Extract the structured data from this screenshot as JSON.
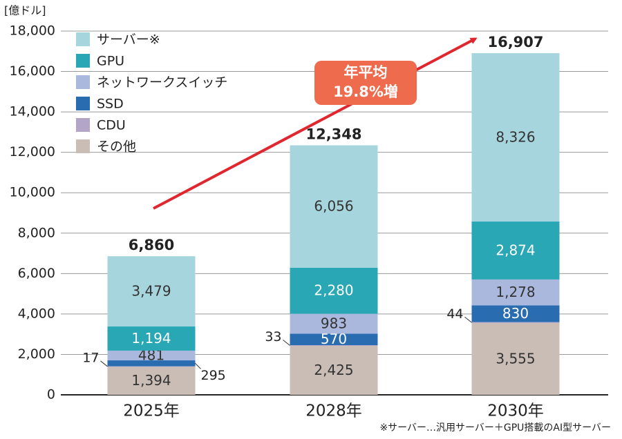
{
  "chart_data": {
    "type": "stacked_bar",
    "unit_label": "[億ドル]",
    "categories": [
      "2025年",
      "2028年",
      "2030年"
    ],
    "series": [
      {
        "name": "その他",
        "color": "#c9bdb5",
        "label_color": "#333333",
        "values": [
          1394,
          2425,
          3555
        ],
        "value_labels": [
          "1,394",
          "2,425",
          "3,555"
        ]
      },
      {
        "name": "CDU",
        "color": "#b3a5c8",
        "label_color": "#333333",
        "values": [
          17,
          33,
          44
        ],
        "value_labels": [
          "17",
          "33",
          "44"
        ]
      },
      {
        "name": "SSD",
        "color": "#2a6cb0",
        "label_color": "#ffffff",
        "values": [
          295,
          570,
          830
        ],
        "value_labels": [
          "295",
          "570",
          "830"
        ]
      },
      {
        "name": "ネットワークスイッチ",
        "color": "#a9b8dc",
        "label_color": "#333333",
        "values": [
          481,
          983,
          1278
        ],
        "value_labels": [
          "481",
          "983",
          "1,278"
        ]
      },
      {
        "name": "GPU",
        "color": "#2aa7b5",
        "label_color": "#ffffff",
        "values": [
          1194,
          2280,
          2874
        ],
        "value_labels": [
          "1,194",
          "2,280",
          "2,874"
        ]
      },
      {
        "name": "サーバー※",
        "color": "#a7d5de",
        "label_color": "#333333",
        "values": [
          3479,
          6056,
          8326
        ],
        "value_labels": [
          "3,479",
          "6,056",
          "8,326"
        ]
      }
    ],
    "totals": [
      6860,
      12348,
      16907
    ],
    "total_labels": [
      "6,860",
      "12,348",
      "16,907"
    ],
    "annotation": [
      "年平均",
      "19.8%増"
    ],
    "footnote": "※サーバー…汎用サーバー＋GPU搭載のAI型サーバー",
    "ylim": [
      0,
      18000
    ],
    "yticks": [
      0,
      {
        "value": 2000,
        "label": "2,000"
      },
      {
        "value": 4000,
        "label": "4,000"
      },
      {
        "value": 6000,
        "label": "6,000"
      },
      {
        "value": 8000,
        "label": "8,000"
      },
      {
        "value": 10000,
        "label": "10,000"
      },
      {
        "value": 12000,
        "label": "12,000"
      },
      {
        "value": 14000,
        "label": "14,000"
      },
      {
        "value": 16000,
        "label": "16,000"
      },
      {
        "value": 18000,
        "label": "18,000"
      }
    ],
    "grid": true
  }
}
